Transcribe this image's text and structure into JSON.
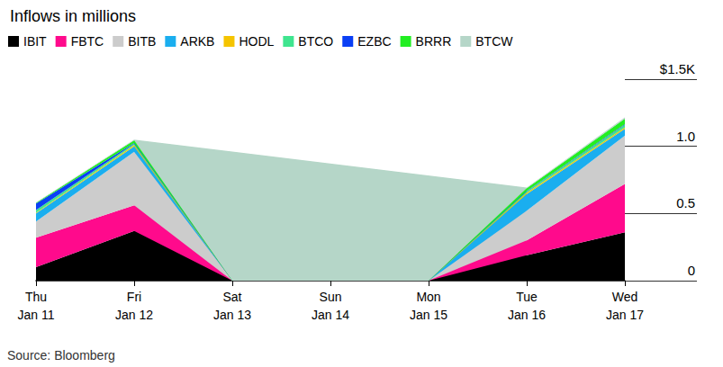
{
  "chart_data": {
    "type": "area",
    "title": "Inflows in millions",
    "source": "Source: Bloomberg",
    "categories": [
      "Thu\nJan 11",
      "Fri\nJan 12",
      "Sat\nJan 13",
      "Sun\nJan 14",
      "Mon\nJan 15",
      "Tue\nJan 16",
      "Wed\nJan 17"
    ],
    "stacked": true,
    "grid": false,
    "legend": "top-left",
    "ylim": [
      0,
      1.5
    ],
    "yticks": [
      0,
      0.5,
      {
        "value": 1.0,
        "label": "1.0"
      },
      {
        "value": 1.5,
        "label": "$1.5K"
      }
    ],
    "series": [
      {
        "name": "IBIT",
        "color": "#000000",
        "values": [
          0.1,
          0.37,
          null,
          null,
          null,
          0.19,
          0.36
        ]
      },
      {
        "name": "FBTC",
        "color": "#ff0a8c",
        "values": [
          0.22,
          0.19,
          null,
          null,
          null,
          0.11,
          0.36
        ]
      },
      {
        "name": "BITB",
        "color": "#cccccc",
        "values": [
          0.12,
          0.4,
          null,
          null,
          null,
          0.22,
          0.36
        ]
      },
      {
        "name": "ARKB",
        "color": "#1aaeef",
        "values": [
          0.06,
          0.04,
          null,
          null,
          null,
          0.125,
          0.05
        ]
      },
      {
        "name": "HODL",
        "color": "#f5c400",
        "values": [
          0.005,
          0.01,
          null,
          null,
          null,
          0.01,
          0.01
        ]
      },
      {
        "name": "BTCO",
        "color": "#3fe58f",
        "values": [
          0.02,
          0.01,
          null,
          null,
          null,
          0.01,
          0.02
        ]
      },
      {
        "name": "EZBC",
        "color": "#0a3ff5",
        "values": [
          0.05,
          0.005,
          null,
          null,
          null,
          0.003,
          0.005
        ]
      },
      {
        "name": "BRRR",
        "color": "#22ee22",
        "values": [
          0.005,
          0.02,
          null,
          null,
          null,
          0.02,
          0.04
        ]
      },
      {
        "name": "BTCW",
        "color": "#b5d6c8",
        "values": [
          0.003,
          0.005,
          null,
          null,
          null,
          0.005,
          0.01
        ]
      }
    ]
  }
}
